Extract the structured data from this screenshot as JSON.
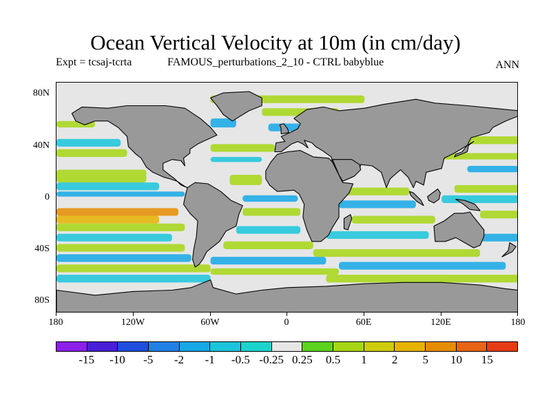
{
  "title": "Ocean Vertical Velocity at 10m (in cm/day)",
  "subtitle_left": "Expt = tcsaj-tcrta",
  "subtitle_center": "FAMOUS_perturbations_2_10 - CTRL babyblue",
  "subtitle_right": "ANN",
  "lat_labels": [
    "80N",
    "40N",
    "0",
    "40S",
    "80S"
  ],
  "lon_labels": [
    "180",
    "120W",
    "60W",
    "0",
    "60E",
    "120E",
    "180"
  ],
  "colorbar": {
    "colors": [
      "#8c1fe8",
      "#4a1ed8",
      "#1f4ee0",
      "#1f80e6",
      "#14a8e6",
      "#1ac4dc",
      "#1ad4cc",
      "#e6e6e6",
      "#5ad21e",
      "#a6d614",
      "#cccc0a",
      "#e6b400",
      "#e68c00",
      "#e66414",
      "#e63c14"
    ],
    "labels": [
      "-15",
      "-10",
      "-5",
      "-2",
      "-1",
      "-0.5",
      "-0.25",
      "0.25",
      "0.5",
      "1",
      "2",
      "5",
      "10",
      "15"
    ]
  },
  "map_colors": {
    "land": "#999999",
    "neutral": "#e6e6e6",
    "coast": "#000000"
  }
}
